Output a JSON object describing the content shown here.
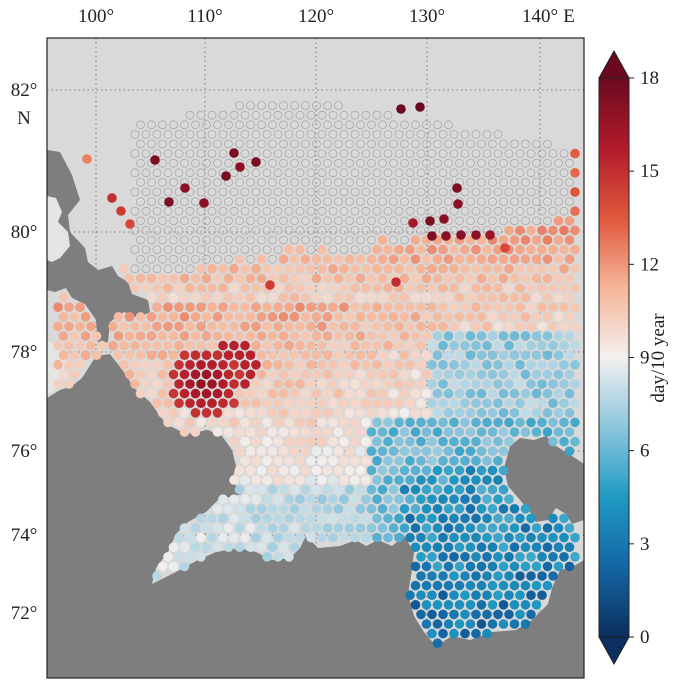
{
  "map": {
    "top_labels": [
      "100°",
      "110°",
      "120°",
      "130°",
      "140°"
    ],
    "east_label": "E",
    "left_labels": [
      "82°",
      "80°",
      "78°",
      "76°",
      "74°",
      "72°"
    ],
    "north_label": "N"
  },
  "colorbar": {
    "ticks": [
      "18",
      "15",
      "12",
      "9",
      "6",
      "3",
      "0"
    ],
    "label": "day/10 year",
    "min": 0,
    "max": 18,
    "colors": [
      "#0b2f5e",
      "#1466a4",
      "#1f9ac3",
      "#8cc6dd",
      "#f3f0ef",
      "#f6b598",
      "#e0573d",
      "#b11a2b",
      "#6b0a1f"
    ]
  },
  "colors": {
    "land": "#7e7e7e",
    "background": "#d9d9d9",
    "empty_marker": "#a9a9a9"
  }
}
